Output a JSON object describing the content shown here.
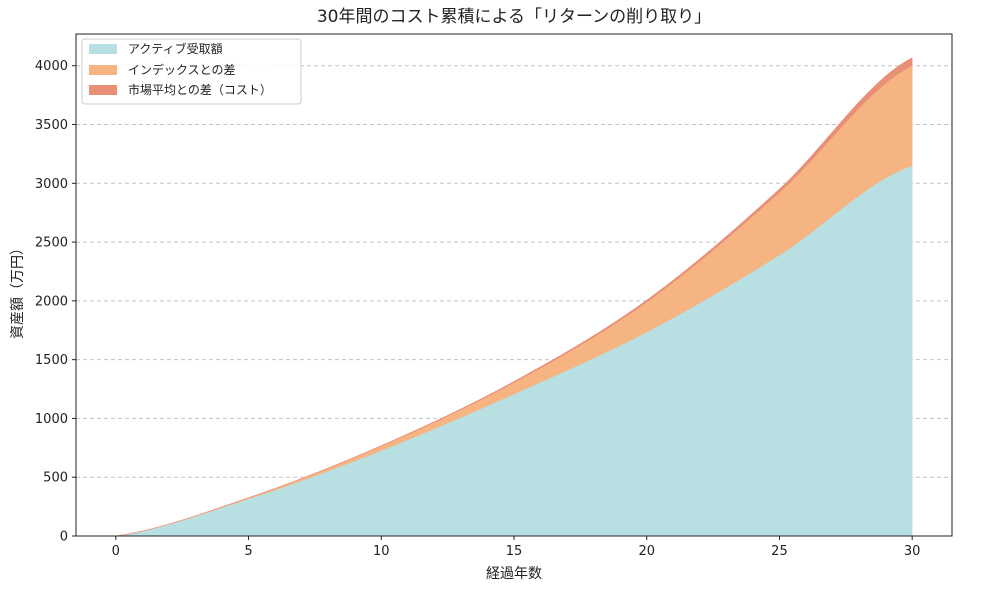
{
  "chart_data": {
    "type": "area",
    "stacked": true,
    "title": "30年間のコスト累積による「リターンの削り取り」",
    "xlabel": "経過年数",
    "ylabel": "資産額（万円）",
    "xlim": [
      -1.5,
      31.5
    ],
    "ylim": [
      0,
      4270
    ],
    "xticks": [
      0,
      5,
      10,
      15,
      20,
      25,
      30
    ],
    "yticks": [
      0,
      500,
      1000,
      1500,
      2000,
      2500,
      3000,
      3500,
      4000
    ],
    "grid": "horizontal-dashed",
    "legend_position": "top-left",
    "x": [
      0,
      5,
      10,
      15,
      20,
      25,
      30
    ],
    "series": [
      {
        "name": "アクティブ受取額",
        "color": "#b8e0e2",
        "values": [
          0,
          316,
          727,
          1208,
          1735,
          2390,
          3150
        ]
      },
      {
        "name": "インデックスとの差",
        "color": "#f5b482",
        "values": [
          0,
          9,
          38,
          98,
          255,
          532,
          850
        ]
      },
      {
        "name": "市場平均との差（コスト）",
        "color": "#ea8f77",
        "values": [
          0,
          1,
          4,
          9,
          17,
          30,
          68
        ]
      }
    ]
  }
}
